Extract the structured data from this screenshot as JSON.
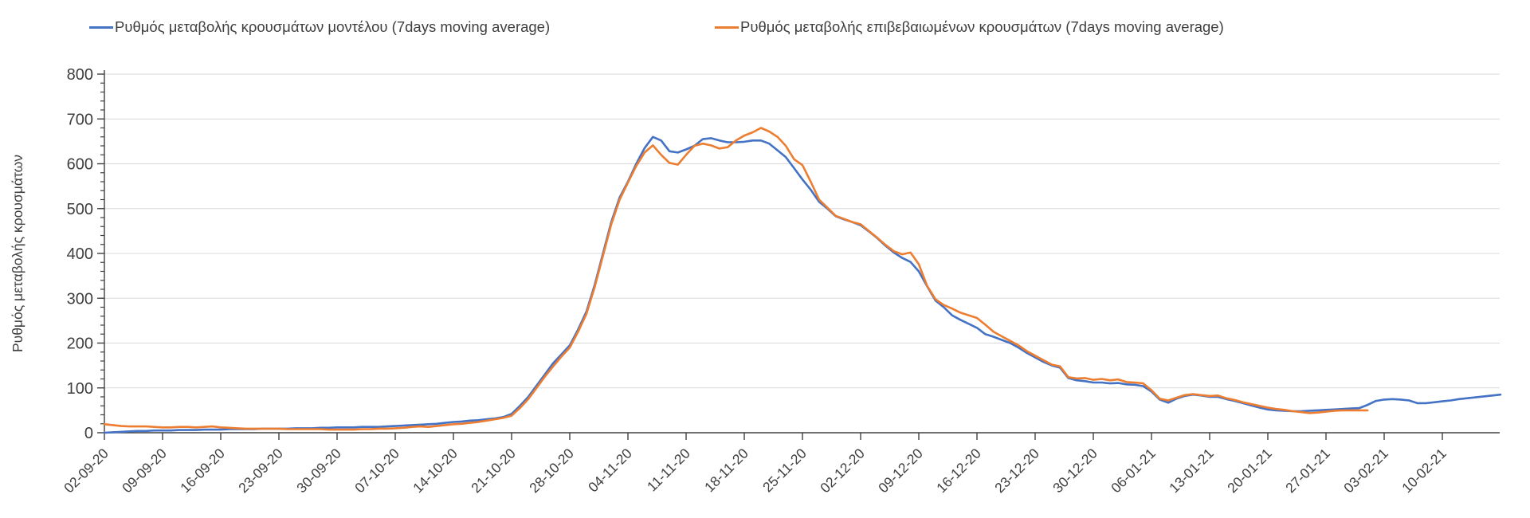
{
  "legend": {
    "items": [
      {
        "label": "Ρυθμός μεταβολής κρουσμάτων μοντέλου (7days moving average)",
        "color": "#4472C4"
      },
      {
        "label": "Ρυθμός μεταβολής επιβεβαιωμένων κρουσμάτων (7days moving average)",
        "color": "#ED7D31"
      }
    ],
    "position": "top"
  },
  "y_axis": {
    "title": "Ρυθμός μεταβολής κρουσμάτων",
    "min": 0,
    "max": 800,
    "tick_step": 100,
    "minor_tick_step": 20,
    "tick_labels": [
      "0",
      "100",
      "200",
      "300",
      "400",
      "500",
      "600",
      "700",
      "800"
    ]
  },
  "x_axis": {
    "tick_labels": [
      "02-09-20",
      "09-09-20",
      "16-09-20",
      "23-09-20",
      "30-09-20",
      "07-10-20",
      "14-10-20",
      "21-10-20",
      "28-10-20",
      "04-11-20",
      "11-11-20",
      "18-11-20",
      "25-11-20",
      "02-12-20",
      "09-12-20",
      "16-12-20",
      "23-12-20",
      "30-12-20",
      "06-01-21",
      "13-01-21",
      "20-01-21",
      "27-01-21",
      "03-02-21",
      "10-02-21"
    ],
    "interval_between_labels_days": 7
  },
  "colors": {
    "gridline": "#D9D9D9",
    "axis": "#404040",
    "tick_text": "#3f3f3f",
    "background": "#FFFFFF"
  },
  "chart_data": {
    "type": "line",
    "title": "",
    "xlabel": "",
    "ylabel": "Ρυθμός μεταβολής κρουσμάτων",
    "ylim": [
      0,
      800
    ],
    "grid": "horizontal",
    "legend_position": "top",
    "x_start_date": "02-09-20",
    "x_sampling": "daily (values are 7-day moving averages, one point per day starting 02-09-20)",
    "x_tick_labels": [
      "02-09-20",
      "09-09-20",
      "16-09-20",
      "23-09-20",
      "30-09-20",
      "07-10-20",
      "14-10-20",
      "21-10-20",
      "28-10-20",
      "04-11-20",
      "11-11-20",
      "18-11-20",
      "25-11-20",
      "02-12-20",
      "09-12-20",
      "16-12-20",
      "23-12-20",
      "30-12-20",
      "06-01-21",
      "13-01-21",
      "20-01-21",
      "27-01-21",
      "03-02-21",
      "10-02-21"
    ],
    "series": [
      {
        "name": "Ρυθμός μεταβολής κρουσμάτων μοντέλου (7days moving average)",
        "color": "#4472C4",
        "end_date": "17-02-21",
        "values": [
          0,
          1,
          2,
          3,
          4,
          4,
          5,
          5,
          5,
          6,
          6,
          6,
          7,
          7,
          7,
          8,
          8,
          8,
          8,
          9,
          9,
          9,
          9,
          10,
          10,
          10,
          11,
          11,
          12,
          12,
          12,
          13,
          13,
          13,
          14,
          15,
          16,
          17,
          18,
          19,
          20,
          22,
          24,
          25,
          27,
          28,
          30,
          32,
          35,
          42,
          60,
          80,
          105,
          130,
          155,
          175,
          195,
          230,
          270,
          330,
          400,
          470,
          525,
          560,
          600,
          635,
          660,
          652,
          628,
          625,
          632,
          640,
          655,
          657,
          652,
          648,
          648,
          649,
          652,
          652,
          645,
          630,
          615,
          590,
          565,
          542,
          515,
          500,
          483,
          476,
          470,
          463,
          449,
          434,
          417,
          402,
          390,
          381,
          360,
          327,
          295,
          280,
          262,
          252,
          243,
          234,
          220,
          214,
          207,
          200,
          190,
          178,
          168,
          158,
          150,
          145,
          122,
          117,
          115,
          112,
          112,
          110,
          111,
          108,
          107,
          104,
          92,
          74,
          67,
          76,
          82,
          85,
          83,
          80,
          80,
          75,
          71,
          66,
          61,
          56,
          52,
          50,
          49,
          48,
          48,
          49,
          50,
          51,
          52,
          53,
          54,
          55,
          62,
          71,
          74,
          75,
          74,
          72,
          66,
          66,
          68,
          70,
          72,
          75,
          77,
          79,
          81,
          83,
          85
        ]
      },
      {
        "name": "Ρυθμός μεταβολής επιβεβαιωμένων κρουσμάτων (7days moving average)",
        "color": "#ED7D31",
        "end_date": "01-02-21",
        "values": [
          19,
          17,
          15,
          14,
          14,
          14,
          13,
          12,
          12,
          13,
          13,
          12,
          13,
          14,
          12,
          11,
          10,
          9,
          9,
          9,
          9,
          9,
          8,
          8,
          8,
          8,
          8,
          7,
          7,
          7,
          7,
          8,
          8,
          9,
          9,
          10,
          11,
          13,
          14,
          13,
          15,
          17,
          19,
          20,
          22,
          24,
          27,
          30,
          33,
          38,
          55,
          75,
          100,
          125,
          148,
          170,
          190,
          225,
          265,
          325,
          395,
          465,
          520,
          558,
          595,
          625,
          641,
          620,
          602,
          598,
          620,
          640,
          645,
          641,
          634,
          637,
          652,
          663,
          670,
          680,
          672,
          660,
          640,
          610,
          597,
          560,
          520,
          502,
          484,
          477,
          470,
          465,
          450,
          435,
          419,
          405,
          398,
          402,
          376,
          328,
          298,
          285,
          277,
          268,
          262,
          256,
          241,
          225,
          215,
          205,
          195,
          182,
          172,
          162,
          152,
          148,
          124,
          121,
          122,
          118,
          120,
          117,
          119,
          113,
          112,
          110,
          95,
          76,
          72,
          78,
          84,
          86,
          84,
          82,
          83,
          77,
          73,
          68,
          64,
          60,
          56,
          53,
          51,
          48,
          46,
          44,
          45,
          47,
          49,
          50,
          50,
          50,
          50
        ]
      }
    ]
  }
}
